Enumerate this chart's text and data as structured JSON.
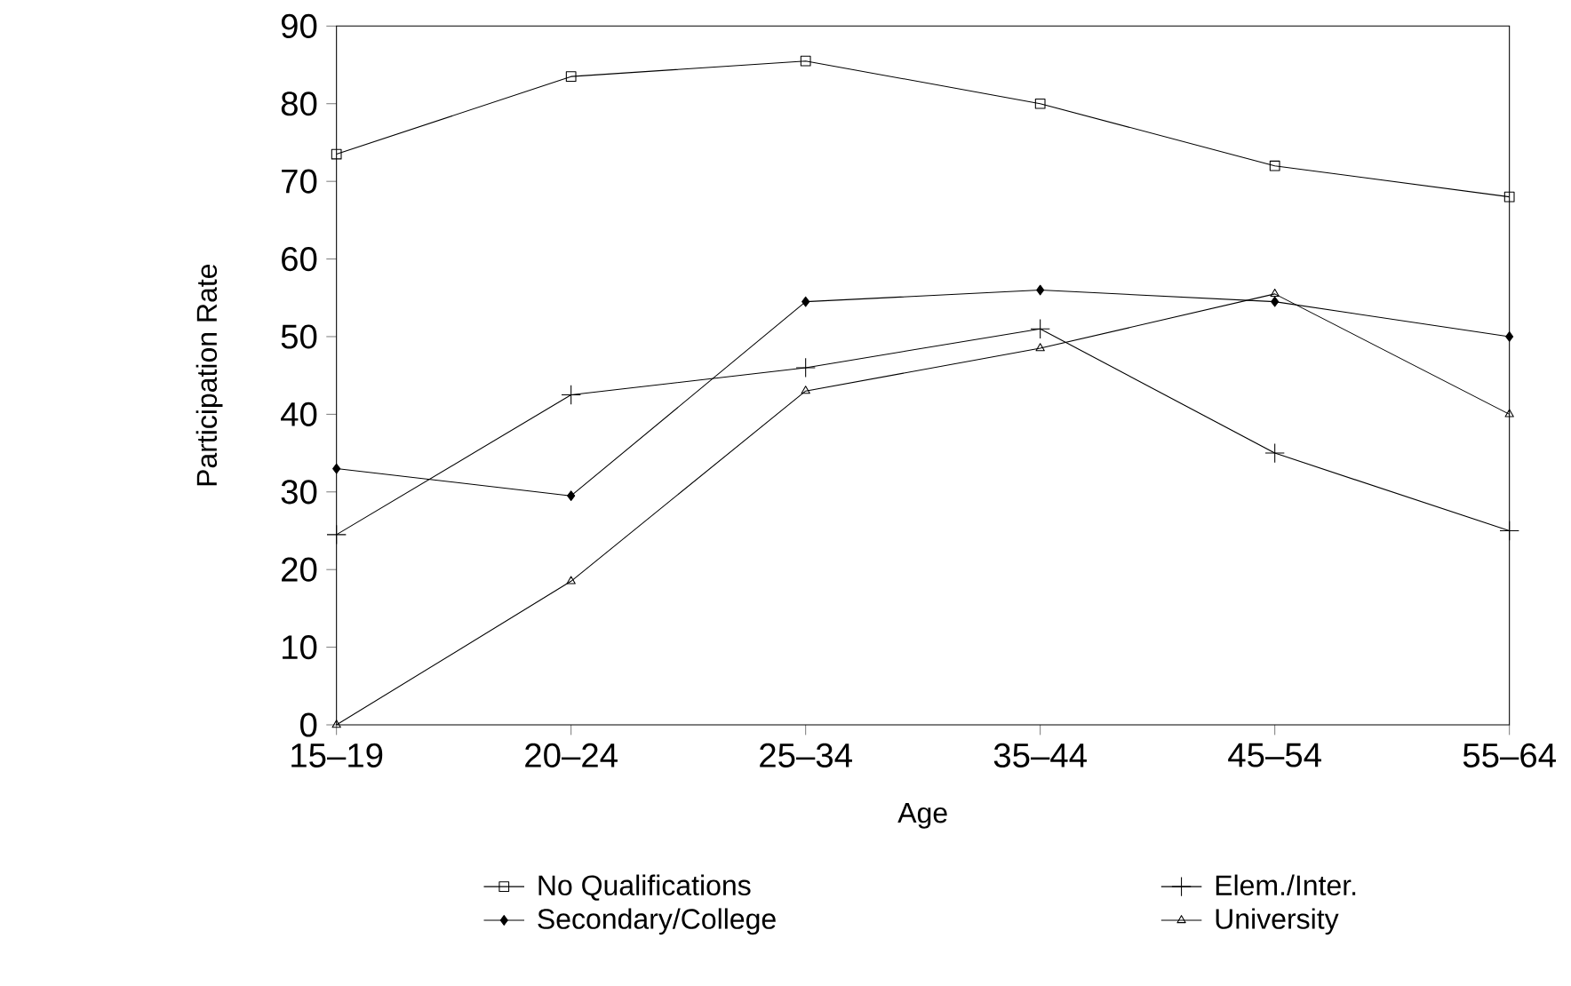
{
  "chart_data": {
    "type": "line",
    "xlabel": "Age",
    "ylabel": "Participation Rate",
    "categories": [
      "15–19",
      "20–24",
      "25–34",
      "35–44",
      "45–54",
      "55–64"
    ],
    "ylim": [
      0,
      90
    ],
    "yticks": [
      0,
      10,
      20,
      30,
      40,
      50,
      60,
      70,
      80,
      90
    ],
    "legend": "bottom",
    "grid": false,
    "line_style": "solid",
    "series": [
      {
        "name": "No Qualifications",
        "color": "#000000",
        "marker": "square",
        "values": [
          73.5,
          83.5,
          85.5,
          80,
          72,
          68
        ]
      },
      {
        "name": "Elem./Inter.",
        "color": "#000000",
        "marker": "cross",
        "values": [
          24.5,
          42.5,
          46,
          51,
          35,
          25
        ]
      },
      {
        "name": "Secondary/College",
        "color": "#000000",
        "marker": "diamond",
        "values": [
          33,
          29.5,
          54.5,
          56,
          54.5,
          50
        ]
      },
      {
        "name": "University",
        "color": "#000000",
        "marker": "triangle",
        "values": [
          0,
          18.5,
          43,
          48.5,
          55.5,
          40
        ]
      }
    ]
  }
}
